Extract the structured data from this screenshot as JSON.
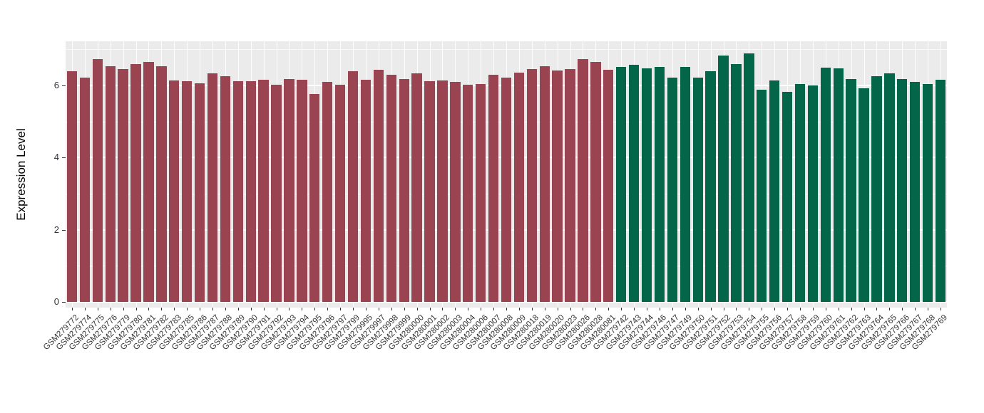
{
  "chart_data": {
    "type": "bar",
    "title": "",
    "xlabel": "",
    "ylabel": "Expression Level",
    "ylim": [
      0,
      7.2
    ],
    "yticks": [
      0,
      2,
      4,
      6
    ],
    "grid": "on",
    "legend": "none",
    "colors": {
      "panel_bg": "#EBEBEB",
      "grid": "#FFFFFF",
      "group_a_bar": "#9B4451",
      "group_b_bar": "#036648",
      "axis_text": "#333333",
      "axis_title": "#000000",
      "tick_mark": "#333333"
    },
    "categories": [
      "GSM279772",
      "GSM279774",
      "GSM279775",
      "GSM279776",
      "GSM279779",
      "GSM279780",
      "GSM279781",
      "GSM279782",
      "GSM279783",
      "GSM279785",
      "GSM279786",
      "GSM279787",
      "GSM279788",
      "GSM279789",
      "GSM279790",
      "GSM279791",
      "GSM279792",
      "GSM279793",
      "GSM279794",
      "GSM279795",
      "GSM279796",
      "GSM279797",
      "GSM279799",
      "GSM279995",
      "GSM279997",
      "GSM279998",
      "GSM279999",
      "GSM280000",
      "GSM280001",
      "GSM280002",
      "GSM280003",
      "GSM280004",
      "GSM280006",
      "GSM280007",
      "GSM280008",
      "GSM280009",
      "GSM280018",
      "GSM280019",
      "GSM280020",
      "GSM280023",
      "GSM280026",
      "GSM280028",
      "GSM280081",
      "GSM279742",
      "GSM279743",
      "GSM279744",
      "GSM279746",
      "GSM279747",
      "GSM279749",
      "GSM279750",
      "GSM279751",
      "GSM279752",
      "GSM279753",
      "GSM279754",
      "GSM279755",
      "GSM279756",
      "GSM279757",
      "GSM279758",
      "GSM279759",
      "GSM279760",
      "GSM279761",
      "GSM279762",
      "GSM279763",
      "GSM279764",
      "GSM279765",
      "GSM279766",
      "GSM279767",
      "GSM279768",
      "GSM279769"
    ],
    "values": [
      6.4,
      6.21,
      6.73,
      6.53,
      6.45,
      6.6,
      6.65,
      6.54,
      6.13,
      6.11,
      6.05,
      6.33,
      6.25,
      6.12,
      6.12,
      6.15,
      6.02,
      6.17,
      6.16,
      5.76,
      6.09,
      6.01,
      6.39,
      6.15,
      6.43,
      6.3,
      6.17,
      6.33,
      6.12,
      6.13,
      6.1,
      6.02,
      6.04,
      6.29,
      6.21,
      6.36,
      6.45,
      6.54,
      6.42,
      6.46,
      6.73,
      6.66,
      6.44,
      6.51,
      6.58,
      6.47,
      6.51,
      6.21,
      6.52,
      6.22,
      6.39,
      6.83,
      6.6,
      6.89,
      5.88,
      6.13,
      5.82,
      6.04,
      5.99,
      6.5,
      6.47,
      6.18,
      5.92,
      6.26,
      6.33,
      6.18,
      6.1,
      6.03,
      6.16
    ],
    "groups": [
      "a",
      "a",
      "a",
      "a",
      "a",
      "a",
      "a",
      "a",
      "a",
      "a",
      "a",
      "a",
      "a",
      "a",
      "a",
      "a",
      "a",
      "a",
      "a",
      "a",
      "a",
      "a",
      "a",
      "a",
      "a",
      "a",
      "a",
      "a",
      "a",
      "a",
      "a",
      "a",
      "a",
      "a",
      "a",
      "a",
      "a",
      "a",
      "a",
      "a",
      "a",
      "a",
      "a",
      "b",
      "b",
      "b",
      "b",
      "b",
      "b",
      "b",
      "b",
      "b",
      "b",
      "b",
      "b",
      "b",
      "b",
      "b",
      "b",
      "b",
      "b",
      "b",
      "b",
      "b",
      "b",
      "b",
      "b",
      "b",
      "b"
    ]
  }
}
